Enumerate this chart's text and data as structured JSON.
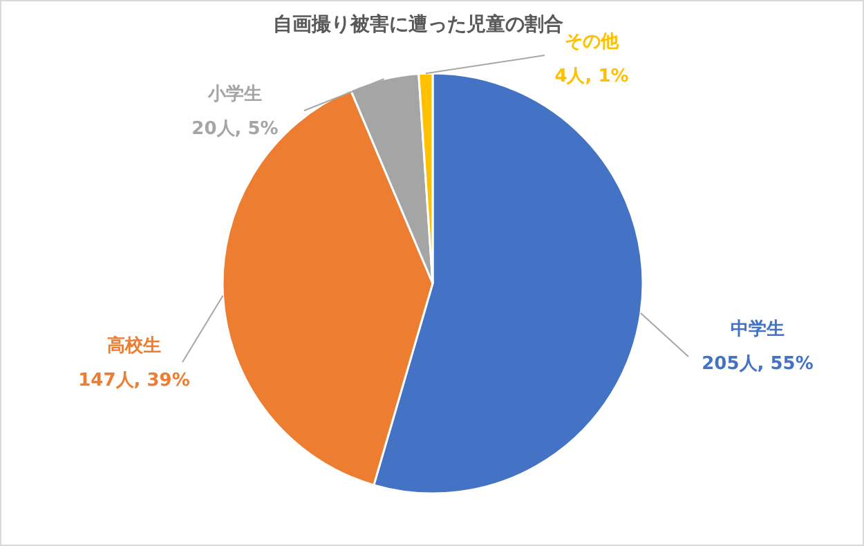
{
  "chart_data": {
    "type": "pie",
    "title": "自画撮り被害に遭った児童の割合",
    "categories": [
      "中学生",
      "高校生",
      "小学生",
      "その他"
    ],
    "values": [
      205,
      147,
      20,
      4
    ],
    "value_labels": [
      "205人, 55%",
      "147人, 39%",
      "20人, 5%",
      "4人, 1%"
    ],
    "colors": [
      "#4472c4",
      "#ed7d31",
      "#a5a5a5",
      "#ffc000"
    ]
  }
}
